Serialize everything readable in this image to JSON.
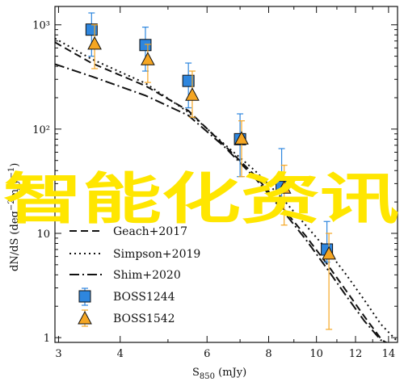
{
  "chart_data": {
    "type": "scatter",
    "title": "",
    "xlabel_main": "S",
    "xlabel_sub": "850",
    "xlabel_unit": " (mJy)",
    "ylabel_main": "dN/dS (deg",
    "ylabel_sup1": "−2",
    "ylabel_mid": "mJy",
    "ylabel_sup2": "−1",
    "ylabel_end": ")",
    "xscale": "log",
    "yscale": "log",
    "xlim": [
      2.95,
      14.6
    ],
    "ylim": [
      0.9,
      1500
    ],
    "x_ticks": [
      3,
      4,
      6,
      8,
      10,
      12,
      14
    ],
    "x_tick_labels": [
      "3",
      "4",
      "6",
      "8",
      "10",
      "12",
      "14"
    ],
    "y_ticks": [
      1,
      10,
      100,
      1000
    ],
    "y_tick_labels": [
      "1",
      "10",
      "10²",
      "10³"
    ],
    "legend_position": "lower-left",
    "series": [
      {
        "name": "Geach+2017",
        "kind": "line",
        "style": "dashed",
        "x": [
          2.95,
          3.5,
          4.5,
          5.5,
          6.5,
          7.5,
          8.5,
          9.5,
          10.5,
          11.5,
          12.5,
          13.5,
          14.0
        ],
        "y": [
          680,
          430,
          260,
          150,
          70,
          36,
          18,
          9.5,
          5.1,
          2.8,
          1.6,
          0.98,
          0.85
        ]
      },
      {
        "name": "Simpson+2019",
        "kind": "line",
        "style": "dotted",
        "x": [
          2.95,
          3.5,
          4.5,
          5.5,
          6.5,
          7.5,
          8.5,
          9.5,
          10.5,
          11.5,
          12.5,
          13.5,
          14.5
        ],
        "y": [
          740,
          470,
          275,
          145,
          72,
          40,
          22,
          12,
          7.0,
          4.0,
          2.3,
          1.35,
          0.95
        ]
      },
      {
        "name": "Shim+2020",
        "kind": "line",
        "style": "dashdot",
        "x": [
          2.95,
          3.5,
          4.5,
          5.5,
          6.5,
          7.5,
          8.5,
          9.5,
          10.5,
          11.5,
          12.5,
          13.5,
          14.0
        ],
        "y": [
          420,
          320,
          210,
          135,
          68,
          34,
          17,
          8.8,
          4.6,
          2.5,
          1.45,
          0.95,
          0.88
        ]
      },
      {
        "name": "BOSS1244",
        "kind": "points",
        "marker": "square",
        "color": "#2e86de",
        "x": [
          3.5,
          4.5,
          5.5,
          7.0,
          8.5,
          10.5
        ],
        "y": [
          900,
          640,
          290,
          80,
          28,
          7.0
        ],
        "yerr_low": [
          500,
          360,
          160,
          35,
          22,
          5.3
        ],
        "yerr_high": [
          1300,
          950,
          430,
          140,
          65,
          13
        ]
      },
      {
        "name": "BOSS1542",
        "kind": "points",
        "marker": "triangle",
        "color": "#f5a623",
        "x": [
          3.55,
          4.55,
          5.6,
          7.05,
          8.6,
          10.6
        ],
        "y": [
          650,
          460,
          210,
          80,
          27,
          6.3
        ],
        "yerr_low": [
          380,
          280,
          130,
          35,
          12,
          1.2
        ],
        "yerr_high": [
          1000,
          650,
          360,
          120,
          45,
          10
        ]
      }
    ]
  },
  "overlay_text": "智能化资讯",
  "colors": {
    "square": "#2e86de",
    "triangle": "#f5a623",
    "overlay": "#ffe600",
    "axis": "#111111"
  }
}
